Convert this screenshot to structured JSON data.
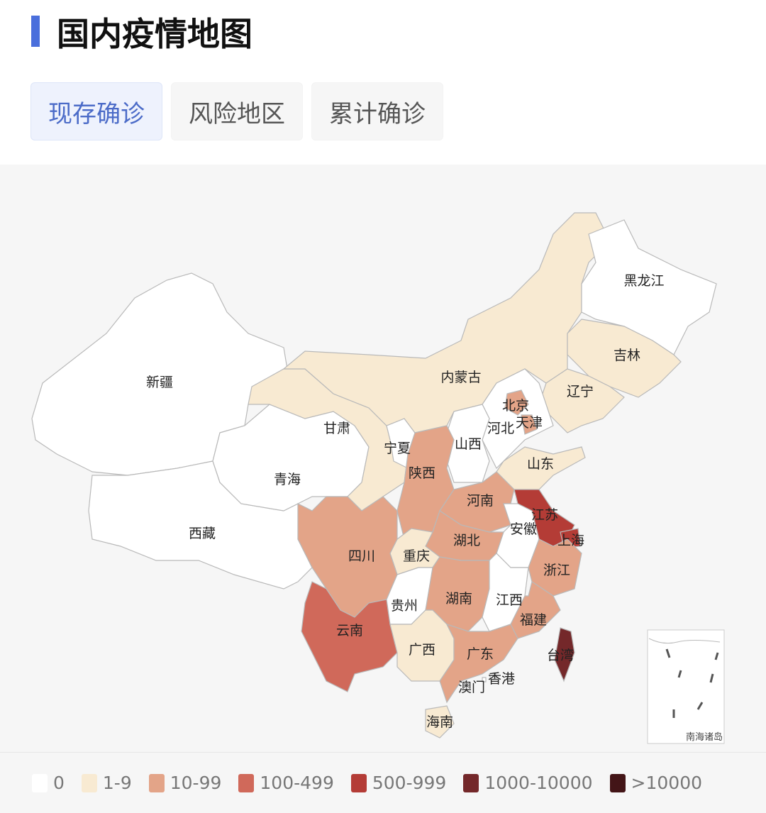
{
  "header": {
    "title": "国内疫情地图",
    "accent": "#4a6fdc"
  },
  "tabs": [
    {
      "label": "现存确诊",
      "active": true
    },
    {
      "label": "风险地区",
      "active": false
    },
    {
      "label": "累计确诊",
      "active": false
    }
  ],
  "legend": [
    {
      "label": "0",
      "color": "#ffffff"
    },
    {
      "label": "1-9",
      "color": "#f8ead2"
    },
    {
      "label": "10-99",
      "color": "#e3a488"
    },
    {
      "label": "100-499",
      "color": "#d0695a"
    },
    {
      "label": "500-999",
      "color": "#b43c36"
    },
    {
      "label": "1000-10000",
      "color": "#74282a"
    },
    {
      "label": ">10000",
      "color": "#431517"
    }
  ],
  "provinces": [
    {
      "name": "新疆",
      "cat": 0
    },
    {
      "name": "西藏",
      "cat": 0
    },
    {
      "name": "青海",
      "cat": 0
    },
    {
      "name": "甘肃",
      "cat": 1
    },
    {
      "name": "宁夏",
      "cat": 0
    },
    {
      "name": "内蒙古",
      "cat": 1
    },
    {
      "name": "黑龙江",
      "cat": 0
    },
    {
      "name": "吉林",
      "cat": 1
    },
    {
      "name": "辽宁",
      "cat": 1
    },
    {
      "name": "河北",
      "cat": 0
    },
    {
      "name": "北京",
      "cat": 2
    },
    {
      "name": "天津",
      "cat": 2
    },
    {
      "name": "山西",
      "cat": 0
    },
    {
      "name": "山东",
      "cat": 1
    },
    {
      "name": "陕西",
      "cat": 2
    },
    {
      "name": "河南",
      "cat": 2
    },
    {
      "name": "江苏",
      "cat": 4
    },
    {
      "name": "上海",
      "cat": 4
    },
    {
      "name": "安徽",
      "cat": 0
    },
    {
      "name": "湖北",
      "cat": 2
    },
    {
      "name": "重庆",
      "cat": 1
    },
    {
      "name": "四川",
      "cat": 2
    },
    {
      "name": "云南",
      "cat": 3
    },
    {
      "name": "贵州",
      "cat": 0
    },
    {
      "name": "湖南",
      "cat": 2
    },
    {
      "name": "江西",
      "cat": 0
    },
    {
      "name": "浙江",
      "cat": 2
    },
    {
      "name": "福建",
      "cat": 2
    },
    {
      "name": "广西",
      "cat": 1
    },
    {
      "name": "广东",
      "cat": 2
    },
    {
      "name": "海南",
      "cat": 1
    },
    {
      "name": "台湾",
      "cat": 5
    },
    {
      "name": "香港",
      "cat": 0
    },
    {
      "name": "澳门",
      "cat": 0
    }
  ],
  "inset": {
    "label": "南海诸岛"
  }
}
